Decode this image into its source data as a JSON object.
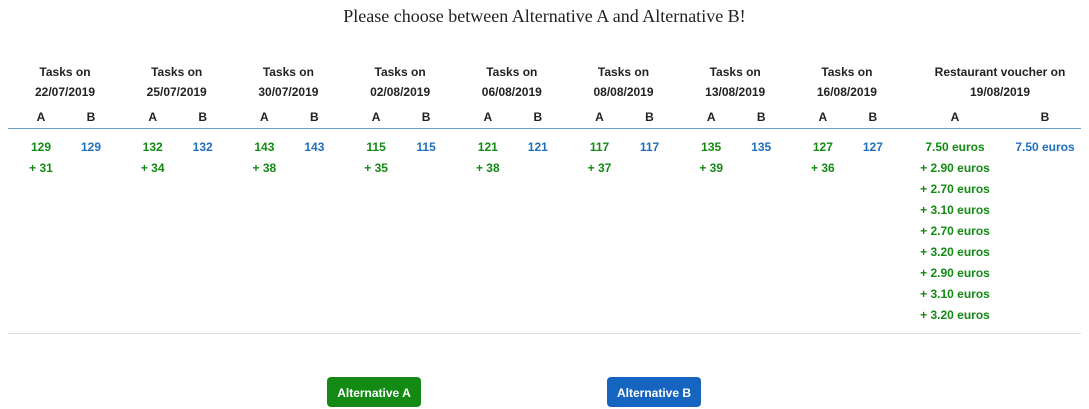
{
  "title": "Please choose between Alternative A and Alternative B!",
  "columns": [
    {
      "header": [
        "Tasks on",
        "22/07/2019"
      ],
      "a_label": "A",
      "b_label": "B",
      "a_values": [
        "129",
        "+ 31"
      ],
      "b_values": [
        "129"
      ]
    },
    {
      "header": [
        "Tasks on",
        "25/07/2019"
      ],
      "a_label": "A",
      "b_label": "B",
      "a_values": [
        "132",
        "+ 34"
      ],
      "b_values": [
        "132"
      ]
    },
    {
      "header": [
        "Tasks on",
        "30/07/2019"
      ],
      "a_label": "A",
      "b_label": "B",
      "a_values": [
        "143",
        "+ 38"
      ],
      "b_values": [
        "143"
      ]
    },
    {
      "header": [
        "Tasks on",
        "02/08/2019"
      ],
      "a_label": "A",
      "b_label": "B",
      "a_values": [
        "115",
        "+ 35"
      ],
      "b_values": [
        "115"
      ]
    },
    {
      "header": [
        "Tasks on",
        "06/08/2019"
      ],
      "a_label": "A",
      "b_label": "B",
      "a_values": [
        "121",
        "+ 38"
      ],
      "b_values": [
        "121"
      ]
    },
    {
      "header": [
        "Tasks on",
        "08/08/2019"
      ],
      "a_label": "A",
      "b_label": "B",
      "a_values": [
        "117",
        "+ 37"
      ],
      "b_values": [
        "117"
      ]
    },
    {
      "header": [
        "Tasks on",
        "13/08/2019"
      ],
      "a_label": "A",
      "b_label": "B",
      "a_values": [
        "135",
        "+ 39"
      ],
      "b_values": [
        "135"
      ]
    },
    {
      "header": [
        "Tasks on",
        "16/08/2019"
      ],
      "a_label": "A",
      "b_label": "B",
      "a_values": [
        "127",
        "+ 36"
      ],
      "b_values": [
        "127"
      ]
    },
    {
      "header": [
        "Restaurant voucher on",
        "19/08/2019"
      ],
      "a_label": "A",
      "b_label": "B",
      "a_values": [
        "7.50 euros",
        "+ 2.90 euros",
        "+ 2.70 euros",
        "+ 3.10 euros",
        "+ 2.70 euros",
        "+ 3.20 euros",
        "+ 2.90 euros",
        "+ 3.10 euros",
        "+ 3.20 euros"
      ],
      "b_values": [
        "7.50 euros"
      ]
    }
  ],
  "buttons": [
    "Alternative A",
    "Alternative B"
  ]
}
